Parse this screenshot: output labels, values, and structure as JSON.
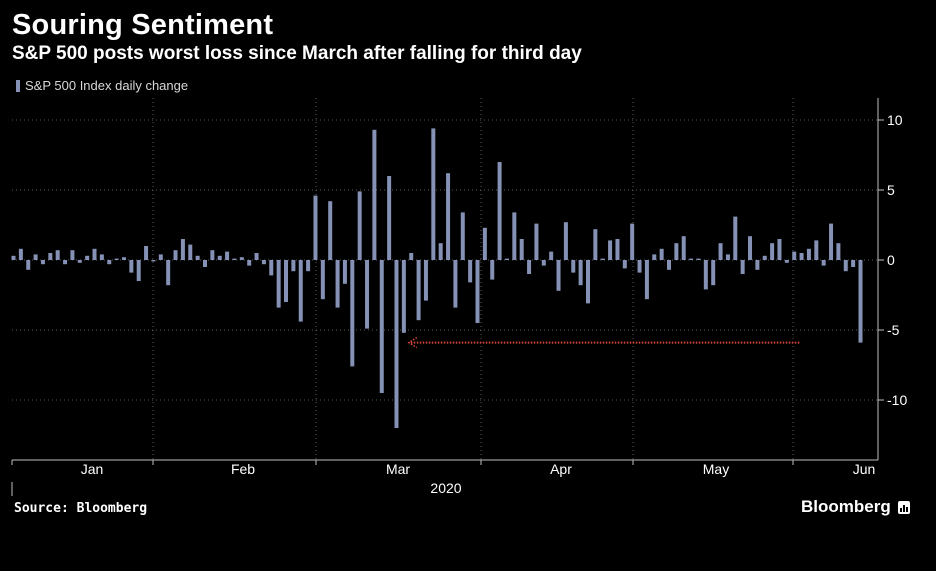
{
  "header": {
    "title": "Souring Sentiment",
    "subtitle": "S&P 500 posts worst loss since March after falling for third day"
  },
  "legend": {
    "label": "S&P 500 Index daily change"
  },
  "footer": {
    "source": "Source: Bloomberg",
    "brand": "Bloomberg"
  },
  "colors": {
    "bar": "#8592b5",
    "arrow": "#d9473d",
    "background": "#000000",
    "text": "#ffffff",
    "grid": "#5a5a5a"
  },
  "chart_data": {
    "type": "bar",
    "title": "Souring Sentiment",
    "subtitle": "S&P 500 posts worst loss since March after falling for third day",
    "legend": [
      "S&P 500 Index daily change"
    ],
    "legend_placement": "top-left",
    "xlabel": "2020",
    "ylabel": "",
    "ylim": [
      -14,
      11
    ],
    "y_axis_side": "right",
    "yticks": [
      10,
      5,
      0,
      -5,
      -10
    ],
    "ytick_labels": [
      "10",
      "5",
      "0",
      "-5",
      "-10"
    ],
    "x_tick_labels": [
      "Jan",
      "Feb",
      "Mar",
      "Apr",
      "May",
      "Jun"
    ],
    "grid": true,
    "annotation": {
      "type": "arrow",
      "direction": "left",
      "y": -5.9,
      "from_day_index": 109,
      "to_day_index": 53
    },
    "series": [
      {
        "name": "S&P 500 Index daily change",
        "values": [
          0.3,
          0.8,
          -0.7,
          0.4,
          -0.3,
          0.5,
          0.7,
          -0.3,
          0.7,
          -0.2,
          0.3,
          0.8,
          0.4,
          -0.3,
          0.1,
          0.2,
          -0.9,
          -1.5,
          1.0,
          -0.1,
          0.4,
          -1.8,
          0.7,
          1.5,
          1.1,
          0.3,
          -0.5,
          0.7,
          0.3,
          0.6,
          0.1,
          0.2,
          -0.4,
          0.5,
          -0.3,
          -1.1,
          -3.4,
          -3.0,
          -0.8,
          -4.4,
          -0.8,
          4.6,
          -2.8,
          4.2,
          -3.4,
          -1.7,
          -7.6,
          4.9,
          -4.9,
          9.3,
          -9.5,
          6.0,
          -12.0,
          -5.2,
          0.5,
          -4.3,
          -2.9,
          9.4,
          1.2,
          6.2,
          -3.4,
          3.4,
          -1.6,
          -4.5,
          2.3,
          -1.4,
          7.0,
          0.1,
          3.4,
          1.5,
          -1.0,
          2.6,
          -0.4,
          0.6,
          -2.2,
          2.7,
          -0.9,
          -1.8,
          -3.1,
          2.2,
          0.1,
          1.4,
          1.5,
          -0.6,
          2.6,
          -0.9,
          -2.8,
          0.4,
          0.8,
          -0.7,
          1.2,
          1.7,
          0.1,
          0.1,
          -2.1,
          -1.8,
          1.2,
          0.4,
          3.1,
          -1.0,
          1.7,
          -0.7,
          0.3,
          1.2,
          1.5,
          -0.2,
          0.6,
          0.5,
          0.8,
          1.4,
          -0.4,
          2.6,
          1.2,
          -0.8,
          -0.5,
          -5.9
        ]
      }
    ]
  }
}
